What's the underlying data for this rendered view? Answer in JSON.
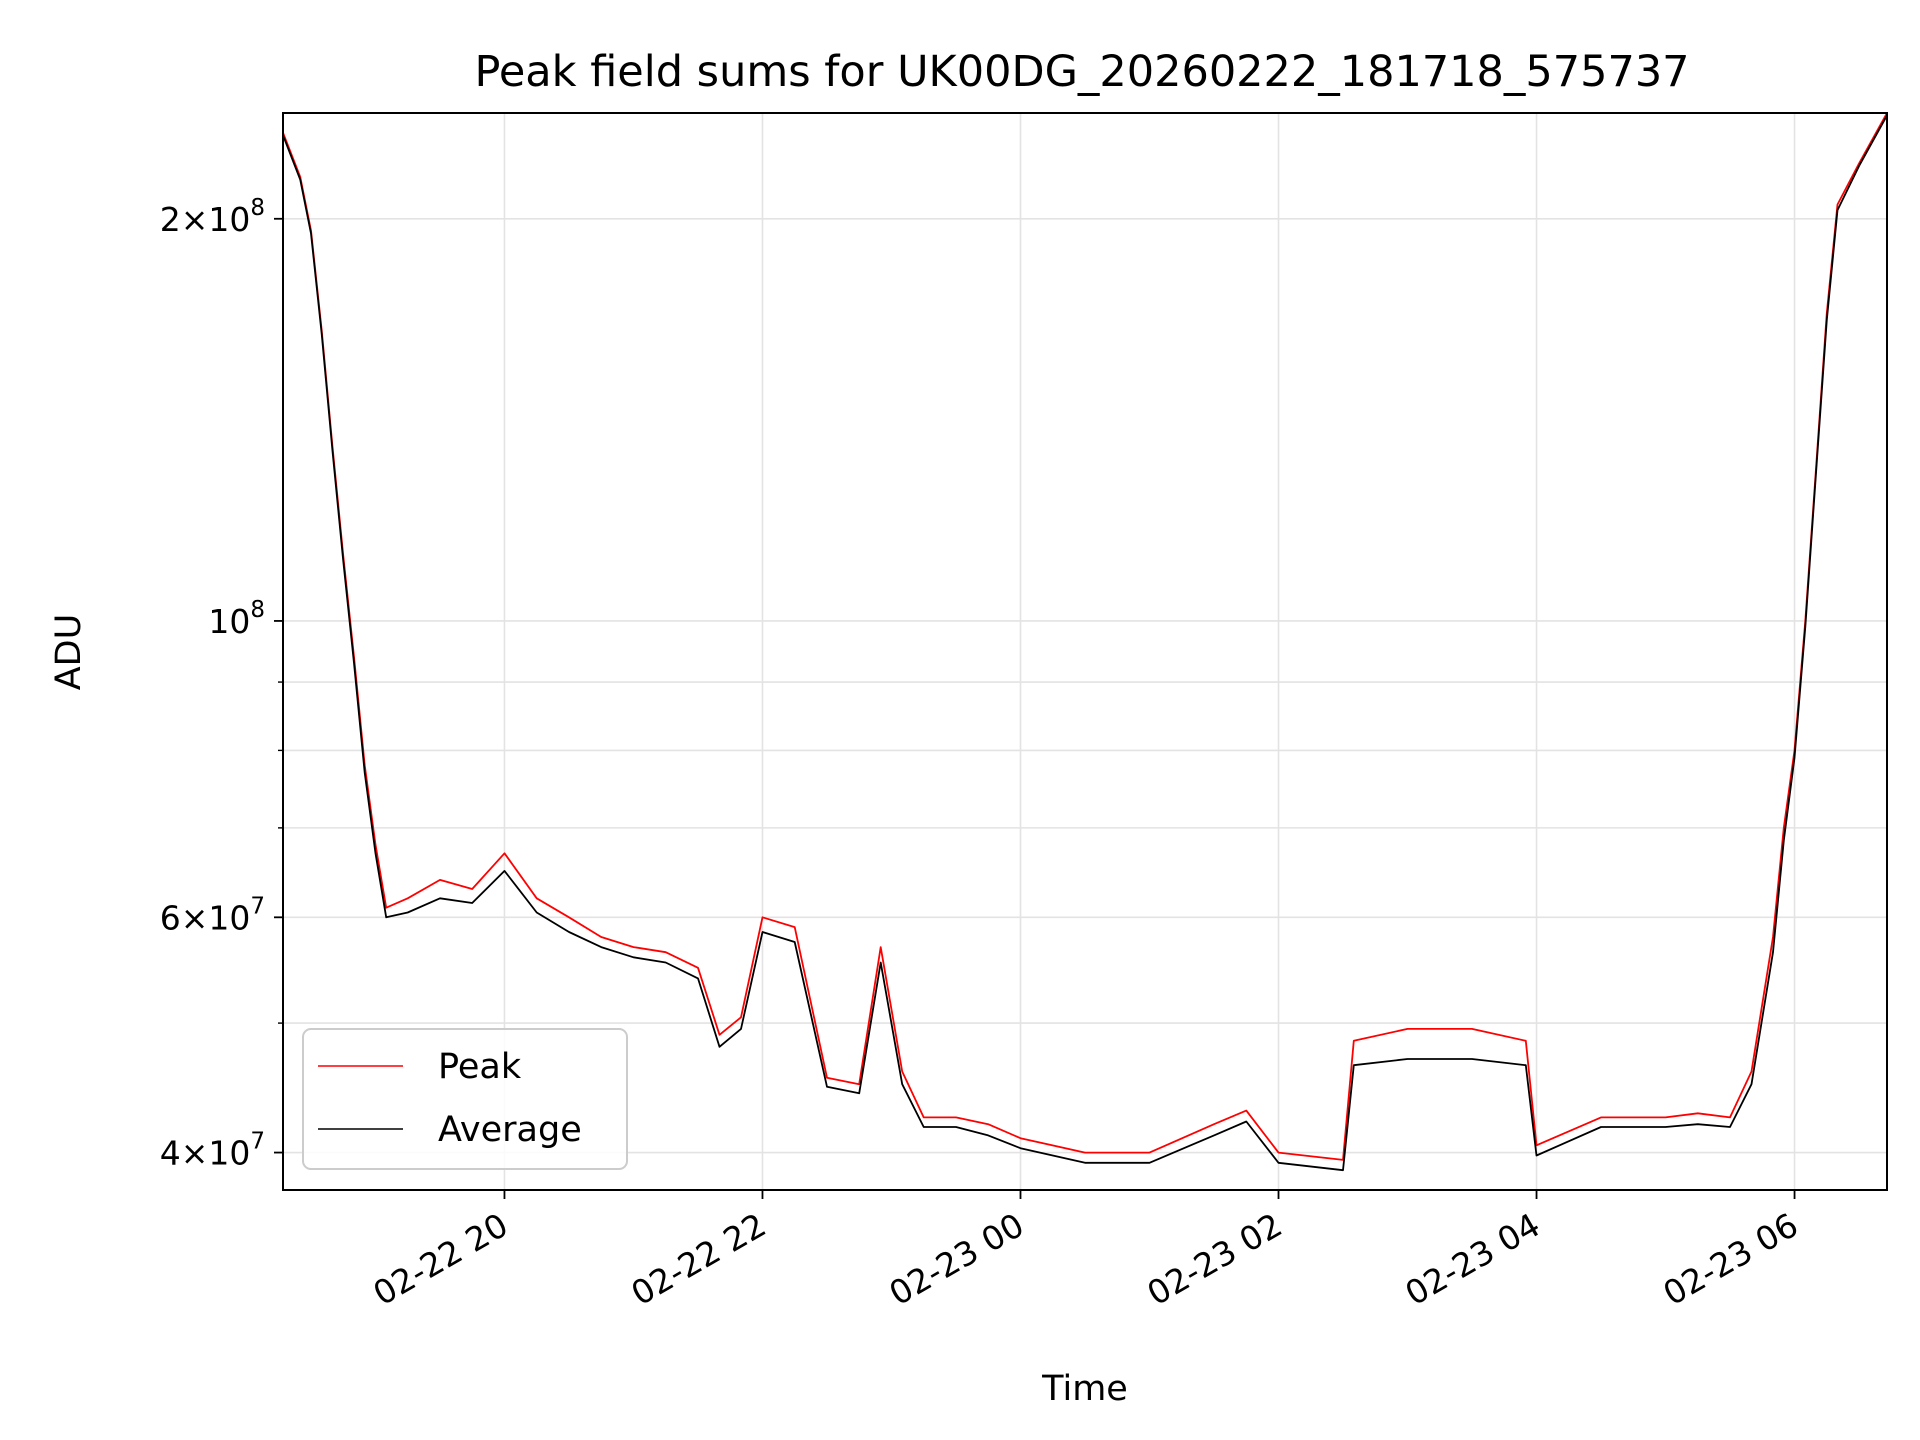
{
  "chart_data": {
    "type": "line",
    "title": "Peak field sums for UK00DG_20260222_181718_575737",
    "xlabel": "Time",
    "ylabel": "ADU",
    "x_range": [
      "2026-02-22 18:17",
      "2026-02-23 06:43"
    ],
    "y_scale": "log",
    "ylim": [
      37500000,
      240000000
    ],
    "grid": true,
    "legend_position": "lower-left",
    "x_ticks": [
      {
        "value": "2026-02-22 20:00",
        "label": "02-22 20"
      },
      {
        "value": "2026-02-22 22:00",
        "label": "02-22 22"
      },
      {
        "value": "2026-02-23 00:00",
        "label": "02-23 00"
      },
      {
        "value": "2026-02-23 02:00",
        "label": "02-23 02"
      },
      {
        "value": "2026-02-23 04:00",
        "label": "02-23 04"
      },
      {
        "value": "2026-02-23 06:00",
        "label": "02-23 06"
      }
    ],
    "y_ticks": [
      {
        "value": 40000000,
        "mantissa": "4",
        "exponent": "7"
      },
      {
        "value": 60000000,
        "mantissa": "6",
        "exponent": "7"
      },
      {
        "value": 100000000,
        "mantissa": "",
        "exponent": "8"
      },
      {
        "value": 200000000,
        "mantissa": "2",
        "exponent": "8"
      }
    ],
    "series": [
      {
        "name": "Peak",
        "color": "#ff0000",
        "points": [
          [
            "2026-02-22 18:17",
            232000000
          ],
          [
            "2026-02-22 18:25",
            215000000
          ],
          [
            "2026-02-22 18:30",
            196000000
          ],
          [
            "2026-02-22 18:35",
            165000000
          ],
          [
            "2026-02-22 18:40",
            135000000
          ],
          [
            "2026-02-22 18:45",
            112000000
          ],
          [
            "2026-02-22 18:50",
            94000000
          ],
          [
            "2026-02-22 18:55",
            78000000
          ],
          [
            "2026-02-22 19:00",
            68000000
          ],
          [
            "2026-02-22 19:05",
            61000000
          ],
          [
            "2026-02-22 19:15",
            62000000
          ],
          [
            "2026-02-22 19:30",
            64000000
          ],
          [
            "2026-02-22 19:45",
            63000000
          ],
          [
            "2026-02-22 20:00",
            67000000
          ],
          [
            "2026-02-22 20:15",
            62000000
          ],
          [
            "2026-02-22 20:30",
            60000000
          ],
          [
            "2026-02-22 20:45",
            58000000
          ],
          [
            "2026-02-22 21:00",
            57000000
          ],
          [
            "2026-02-22 21:15",
            56500000
          ],
          [
            "2026-02-22 21:30",
            55000000
          ],
          [
            "2026-02-22 21:40",
            49000000
          ],
          [
            "2026-02-22 21:50",
            50500000
          ],
          [
            "2026-02-22 22:00",
            60000000
          ],
          [
            "2026-02-22 22:15",
            59000000
          ],
          [
            "2026-02-22 22:30",
            45500000
          ],
          [
            "2026-02-22 22:45",
            45000000
          ],
          [
            "2026-02-22 22:55",
            57000000
          ],
          [
            "2026-02-22 23:05",
            46000000
          ],
          [
            "2026-02-22 23:15",
            42500000
          ],
          [
            "2026-02-22 23:30",
            42500000
          ],
          [
            "2026-02-22 23:45",
            42000000
          ],
          [
            "2026-02-23 00:00",
            41000000
          ],
          [
            "2026-02-23 00:30",
            40000000
          ],
          [
            "2026-02-23 01:00",
            40000000
          ],
          [
            "2026-02-23 01:30",
            42000000
          ],
          [
            "2026-02-23 01:45",
            43000000
          ],
          [
            "2026-02-23 02:00",
            40000000
          ],
          [
            "2026-02-23 02:30",
            39500000
          ],
          [
            "2026-02-23 02:35",
            48500000
          ],
          [
            "2026-02-23 03:00",
            49500000
          ],
          [
            "2026-02-23 03:30",
            49500000
          ],
          [
            "2026-02-23 03:55",
            48500000
          ],
          [
            "2026-02-23 04:00",
            40500000
          ],
          [
            "2026-02-23 04:30",
            42500000
          ],
          [
            "2026-02-23 05:00",
            42500000
          ],
          [
            "2026-02-23 05:15",
            42800000
          ],
          [
            "2026-02-23 05:30",
            42500000
          ],
          [
            "2026-02-23 05:40",
            46000000
          ],
          [
            "2026-02-23 05:50",
            58000000
          ],
          [
            "2026-02-23 05:55",
            70000000
          ],
          [
            "2026-02-23 06:00",
            80000000
          ],
          [
            "2026-02-23 06:05",
            100000000
          ],
          [
            "2026-02-23 06:10",
            130000000
          ],
          [
            "2026-02-23 06:15",
            170000000
          ],
          [
            "2026-02-23 06:20",
            205000000
          ],
          [
            "2026-02-23 06:30",
            220000000
          ],
          [
            "2026-02-23 06:43",
            240000000
          ]
        ]
      },
      {
        "name": "Average",
        "color": "#000000",
        "points": [
          [
            "2026-02-22 18:17",
            231000000
          ],
          [
            "2026-02-22 18:25",
            214000000
          ],
          [
            "2026-02-22 18:30",
            195000000
          ],
          [
            "2026-02-22 18:35",
            164000000
          ],
          [
            "2026-02-22 18:40",
            134000000
          ],
          [
            "2026-02-22 18:45",
            111000000
          ],
          [
            "2026-02-22 18:50",
            93000000
          ],
          [
            "2026-02-22 18:55",
            77000000
          ],
          [
            "2026-02-22 19:00",
            67000000
          ],
          [
            "2026-02-22 19:05",
            60000000
          ],
          [
            "2026-02-22 19:15",
            60500000
          ],
          [
            "2026-02-22 19:30",
            62000000
          ],
          [
            "2026-02-22 19:45",
            61500000
          ],
          [
            "2026-02-22 20:00",
            65000000
          ],
          [
            "2026-02-22 20:15",
            60500000
          ],
          [
            "2026-02-22 20:30",
            58500000
          ],
          [
            "2026-02-22 20:45",
            57000000
          ],
          [
            "2026-02-22 21:00",
            56000000
          ],
          [
            "2026-02-22 21:15",
            55500000
          ],
          [
            "2026-02-22 21:30",
            54000000
          ],
          [
            "2026-02-22 21:40",
            48000000
          ],
          [
            "2026-02-22 21:50",
            49500000
          ],
          [
            "2026-02-22 22:00",
            58500000
          ],
          [
            "2026-02-22 22:15",
            57500000
          ],
          [
            "2026-02-22 22:30",
            44800000
          ],
          [
            "2026-02-22 22:45",
            44300000
          ],
          [
            "2026-02-22 22:55",
            55500000
          ],
          [
            "2026-02-22 23:05",
            45000000
          ],
          [
            "2026-02-22 23:15",
            41800000
          ],
          [
            "2026-02-22 23:30",
            41800000
          ],
          [
            "2026-02-22 23:45",
            41200000
          ],
          [
            "2026-02-23 00:00",
            40300000
          ],
          [
            "2026-02-23 00:30",
            39300000
          ],
          [
            "2026-02-23 01:00",
            39300000
          ],
          [
            "2026-02-23 01:30",
            41200000
          ],
          [
            "2026-02-23 01:45",
            42200000
          ],
          [
            "2026-02-23 02:00",
            39300000
          ],
          [
            "2026-02-23 02:30",
            38800000
          ],
          [
            "2026-02-23 02:35",
            46500000
          ],
          [
            "2026-02-23 03:00",
            47000000
          ],
          [
            "2026-02-23 03:30",
            47000000
          ],
          [
            "2026-02-23 03:55",
            46500000
          ],
          [
            "2026-02-23 04:00",
            39800000
          ],
          [
            "2026-02-23 04:30",
            41800000
          ],
          [
            "2026-02-23 05:00",
            41800000
          ],
          [
            "2026-02-23 05:15",
            42000000
          ],
          [
            "2026-02-23 05:30",
            41800000
          ],
          [
            "2026-02-23 05:40",
            45000000
          ],
          [
            "2026-02-23 05:50",
            56500000
          ],
          [
            "2026-02-23 05:55",
            68500000
          ],
          [
            "2026-02-23 06:00",
            79000000
          ],
          [
            "2026-02-23 06:05",
            99000000
          ],
          [
            "2026-02-23 06:10",
            129000000
          ],
          [
            "2026-02-23 06:15",
            168000000
          ],
          [
            "2026-02-23 06:20",
            203000000
          ],
          [
            "2026-02-23 06:30",
            219000000
          ],
          [
            "2026-02-23 06:43",
            239000000
          ]
        ]
      }
    ]
  }
}
